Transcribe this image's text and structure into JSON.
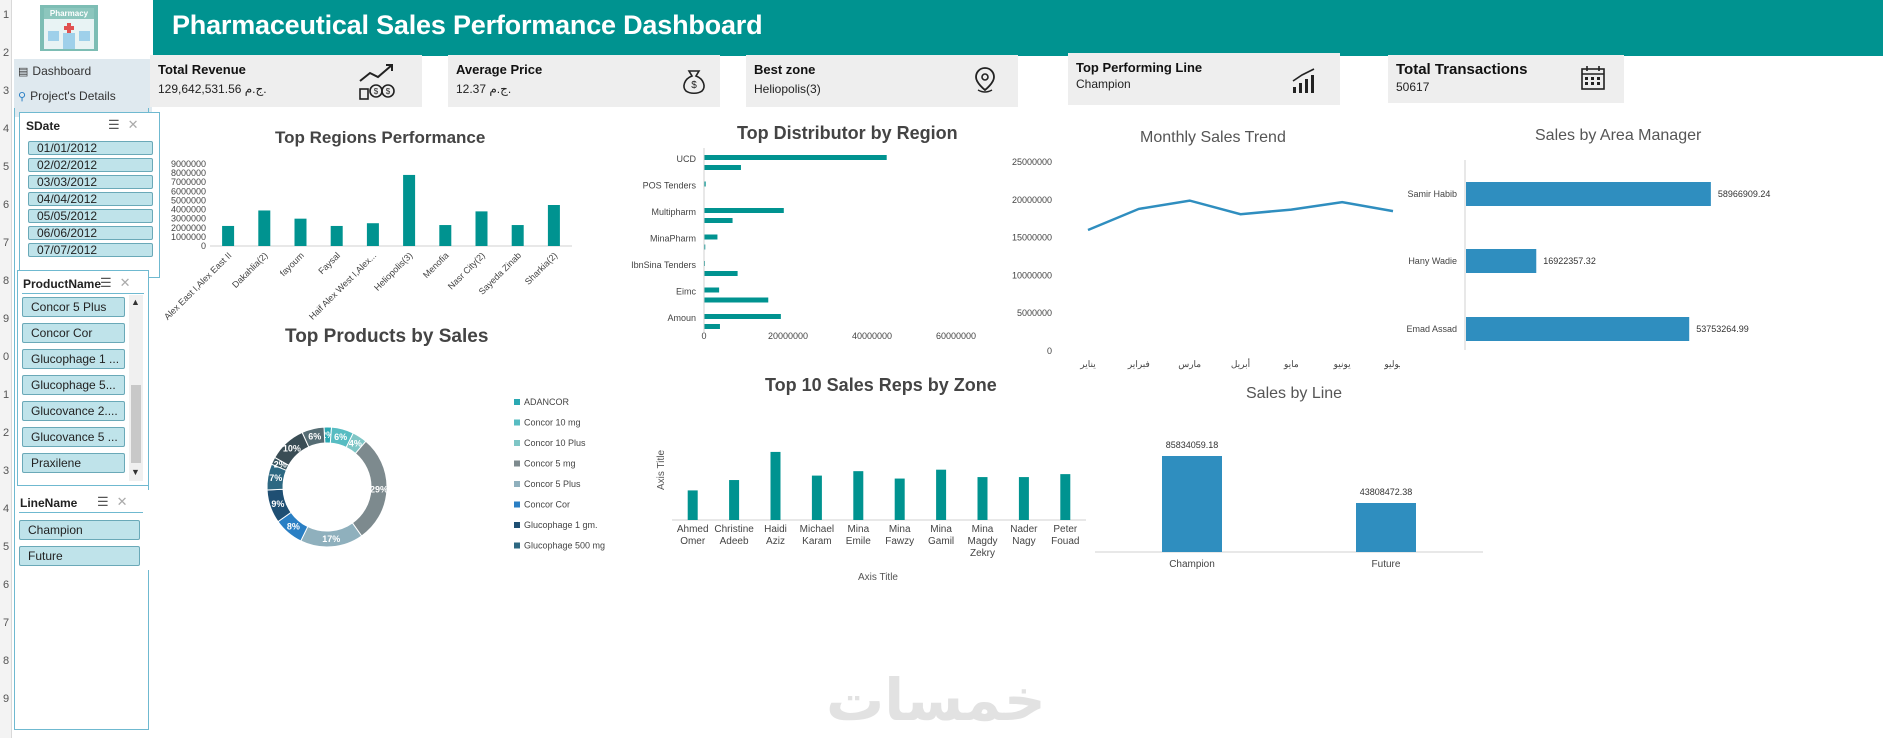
{
  "header": {
    "title": "Pharmaceutical Sales Performance Dashboard",
    "logo_text": "Pharmacy"
  },
  "row_numbers": [
    "1",
    "2",
    "3",
    "4",
    "5",
    "6",
    "7",
    "8",
    "9",
    "0",
    "1",
    "2",
    "3",
    "4",
    "5",
    "6",
    "7",
    "8",
    "9"
  ],
  "nav": {
    "dashboard": "Dashboard",
    "details": "Project's Details"
  },
  "kpis": {
    "revenue": {
      "label": "Total Revenue",
      "value": "129,642,531.56 ج.م."
    },
    "avg_price": {
      "label": "Average Price",
      "value": "12.37 ج.م."
    },
    "best_zone": {
      "label": "Best zone",
      "value": "Heliopolis(3)"
    },
    "top_line": {
      "label": "Top Performing Line",
      "value": "Champion"
    },
    "transactions": {
      "label": "Total Transactions",
      "value": "50617"
    }
  },
  "slicers": {
    "sdate": {
      "title": "SDate",
      "items": [
        "01/01/2012",
        "02/02/2012",
        "03/03/2012",
        "04/04/2012",
        "05/05/2012",
        "06/06/2012",
        "07/07/2012"
      ]
    },
    "product": {
      "title": "ProductName",
      "items": [
        "Concor 5 Plus",
        "Concor Cor",
        "Glucophage 1 ...",
        "Glucophage 5...",
        "Glucovance 2....",
        "Glucovance 5 ...",
        "Praxilene"
      ]
    },
    "line": {
      "title": "LineName",
      "items": [
        "Champion",
        "Future"
      ]
    }
  },
  "colors": {
    "teal": "#009390",
    "bar_blue": "#2f8ebf",
    "banner": "#009390"
  },
  "chart_data": [
    {
      "id": "regions",
      "type": "bar",
      "title": "Top Regions Performance",
      "categories": [
        "Alex East I,Alex East II",
        "Dakahlia(2)",
        "fayoum",
        "Faysal",
        "Haif Alex West I,Alex...",
        "Heliopolis(3)",
        "Menofia",
        "Nasr City(2)",
        "Sayeda Zinab",
        "Sharkia(2)"
      ],
      "values": [
        2200000,
        3900000,
        3000000,
        2200000,
        2500000,
        7800000,
        2300000,
        3800000,
        2300000,
        4500000
      ],
      "ylim": [
        0,
        9000000
      ],
      "yticks": [
        "9000000",
        "8000000",
        "7000000",
        "6000000",
        "5000000",
        "4000000",
        "3000000",
        "2000000",
        "1000000",
        "0"
      ]
    },
    {
      "id": "distributor",
      "type": "bar",
      "orientation": "horizontal",
      "title": "Top Distributor by Region",
      "categories": [
        "UCD",
        "POS Tenders",
        "Multipharm",
        "MinaPharm",
        "IbnSina Tenders",
        "Eimc",
        "Amoun"
      ],
      "series": [
        {
          "values": [
            43500000,
            400000,
            19000000,
            3200000,
            200000,
            3600000,
            18300000
          ]
        },
        {
          "values": [
            8800000,
            null,
            6800000,
            300000,
            8000000,
            15300000,
            3800000
          ]
        }
      ],
      "xlim": [
        0,
        60000000
      ],
      "xticks": [
        "0",
        "20000000",
        "40000000",
        "60000000"
      ]
    },
    {
      "id": "monthly",
      "type": "line",
      "title": "Monthly Sales Trend",
      "categories": [
        "يناير",
        "فبراير",
        "مارس",
        "أبريل",
        "مايو",
        "يونيو",
        "يوليو"
      ],
      "values": [
        16000000,
        18800000,
        19900000,
        18100000,
        18700000,
        19700000,
        18500000
      ],
      "ylim": [
        0,
        25000000
      ],
      "yticks": [
        "25000000",
        "20000000",
        "15000000",
        "10000000",
        "5000000",
        "0"
      ]
    },
    {
      "id": "area_manager",
      "type": "bar",
      "orientation": "horizontal",
      "title": "Sales by Area Manager",
      "categories": [
        "Samir Habib",
        "Hany Wadie",
        "Emad Assad"
      ],
      "values": [
        58966909.24,
        16922357.32,
        53753264.99
      ],
      "labels": [
        "58966909.24",
        "16922357.32",
        "53753264.99"
      ]
    },
    {
      "id": "products",
      "type": "pie",
      "title": "Top Products by Sales",
      "legend": [
        "ADANCOR",
        "Concor 10 mg",
        "Concor 10 Plus",
        "Concor 5 mg",
        "Concor 5 Plus",
        "Concor Cor",
        "Glucophage 1 gm.",
        "Glucophage 500 mg"
      ],
      "slices": [
        {
          "value": 2,
          "label": "2%",
          "color": "#2aa9b3"
        },
        {
          "value": 6,
          "label": "6%",
          "color": "#57bcc2"
        },
        {
          "value": 4,
          "label": "4%",
          "color": "#7fc6c6"
        },
        {
          "value": 29,
          "label": "29%",
          "color": "#7d8a8e"
        },
        {
          "value": 17,
          "label": "17%",
          "color": "#8fb0bd"
        },
        {
          "value": 8,
          "label": "8%",
          "color": "#2a7fc4"
        },
        {
          "value": 9,
          "label": "9%",
          "color": "#1f4f73"
        },
        {
          "value": 7,
          "label": "7%",
          "color": "#2d6882"
        },
        {
          "value": 2,
          "label": "2%",
          "color": "#38555f"
        },
        {
          "value": 10,
          "label": "10%",
          "color": "#3a4d55"
        },
        {
          "value": 6,
          "label": "6%",
          "color": "#566d74"
        }
      ]
    },
    {
      "id": "sales_reps",
      "type": "bar",
      "title": "Top 10 Sales Reps by Zone",
      "categories": [
        "Ahmed Omer",
        "Christine Adeeb",
        "Haidi Aziz",
        "Michael Karam",
        "Mina Emile",
        "Mina Fawzy",
        "Mina Gamil",
        "Mina Magdy Zekry",
        "Nader Nagy",
        "Peter Fouad"
      ],
      "values": [
        40,
        54,
        92,
        60,
        66,
        56,
        68,
        58,
        58,
        62
      ],
      "xlabel": "Axis Title",
      "ylabel": "Axis Title"
    },
    {
      "id": "line",
      "type": "bar",
      "title": "Sales by Line",
      "categories": [
        "Champion",
        "Future"
      ],
      "values": [
        85834059.18,
        43808472.38
      ],
      "labels": [
        "85834059.18",
        "43808472.38"
      ]
    }
  ],
  "watermark": "خمسات"
}
